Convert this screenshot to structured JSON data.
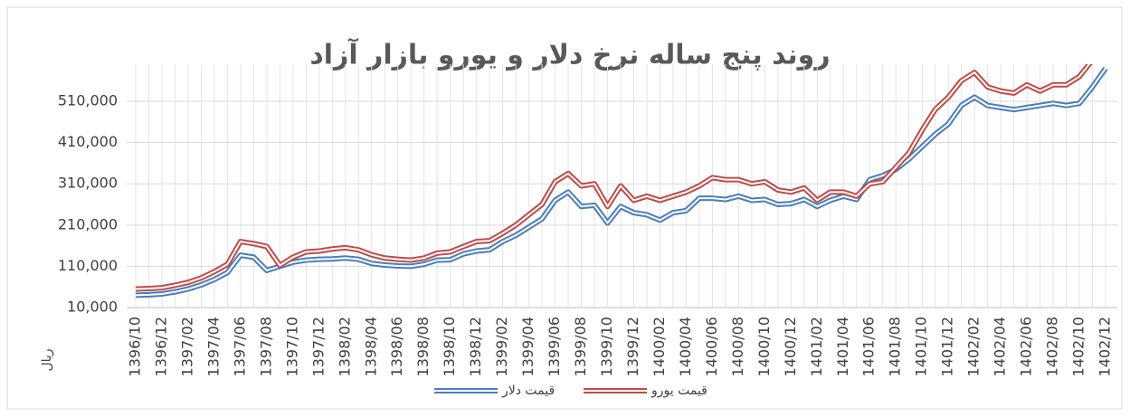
{
  "chart_data": {
    "type": "line",
    "title": "روند پنج ساله نرخ دلار و یورو بازار آزاد",
    "y_label": "ریال",
    "categories": [
      "1396/10",
      null,
      "1396/12",
      null,
      "1397/02",
      null,
      "1397/04",
      null,
      "1397/06",
      null,
      "1397/08",
      null,
      "1397/10",
      null,
      "1397/12",
      null,
      "1398/02",
      null,
      "1398/04",
      null,
      "1398/06",
      null,
      "1398/08",
      null,
      "1398/10",
      null,
      "1398/12",
      null,
      "1399/02",
      null,
      "1399/04",
      null,
      "1399/06",
      null,
      "1399/08",
      null,
      "1399/10",
      null,
      "1399/12",
      null,
      "1400/02",
      null,
      "1400/04",
      null,
      "1400/06",
      null,
      "1400/08",
      null,
      "1400/10",
      null,
      "1400/12",
      null,
      "1401/02",
      null,
      "1401/04",
      null,
      "1401/06",
      null,
      "1401/08",
      null,
      "1401/10",
      null,
      "1401/12",
      null,
      "1402/02",
      null,
      "1402/04",
      null,
      "1402/06",
      null,
      "1402/08",
      null,
      "1402/10",
      null,
      "1402/12"
    ],
    "series": [
      {
        "name": "قیمت دلار",
        "color": "#4a7ebb",
        "values": [
          40000,
          41000,
          43000,
          48000,
          55000,
          65000,
          78000,
          95000,
          137000,
          132000,
          100000,
          110000,
          120000,
          125000,
          127000,
          128000,
          130000,
          127000,
          117000,
          113000,
          111000,
          110000,
          115000,
          125000,
          126000,
          140000,
          147000,
          150000,
          170000,
          185000,
          205000,
          225000,
          270000,
          290000,
          255000,
          258000,
          215000,
          255000,
          240000,
          235000,
          222000,
          240000,
          245000,
          275000,
          275000,
          272000,
          280000,
          270000,
          272000,
          260000,
          262000,
          272000,
          255000,
          270000,
          280000,
          272000,
          320000,
          330000,
          345000,
          370000,
          400000,
          430000,
          455000,
          500000,
          520000,
          500000,
          495000,
          490000,
          495000,
          500000,
          505000,
          500000,
          505000,
          545000,
          590000
        ]
      },
      {
        "name": "قیمت یورو",
        "color": "#be4b48",
        "values": [
          55000,
          56000,
          58000,
          64000,
          71000,
          82000,
          97000,
          115000,
          170000,
          165000,
          158000,
          112000,
          132000,
          145000,
          147000,
          152000,
          155000,
          150000,
          138000,
          130000,
          127000,
          125000,
          130000,
          142000,
          145000,
          158000,
          170000,
          172000,
          190000,
          210000,
          235000,
          260000,
          315000,
          335000,
          305000,
          310000,
          255000,
          305000,
          270000,
          280000,
          270000,
          280000,
          290000,
          305000,
          325000,
          320000,
          320000,
          310000,
          315000,
          295000,
          290000,
          300000,
          270000,
          290000,
          290000,
          280000,
          310000,
          315000,
          350000,
          385000,
          440000,
          490000,
          520000,
          560000,
          580000,
          545000,
          535000,
          530000,
          550000,
          535000,
          550000,
          550000,
          570000,
          610000,
          650000
        ]
      }
    ],
    "ylim": [
      10000,
      600000
    ],
    "yticks": [
      {
        "value": 10000,
        "label": "10,000"
      },
      {
        "value": 110000,
        "label": "110,000"
      },
      {
        "value": 210000,
        "label": "210,000"
      },
      {
        "value": 310000,
        "label": "310,000"
      },
      {
        "value": 410000,
        "label": "410,000"
      },
      {
        "value": 510000,
        "label": "510,000"
      }
    ],
    "grid": true
  }
}
